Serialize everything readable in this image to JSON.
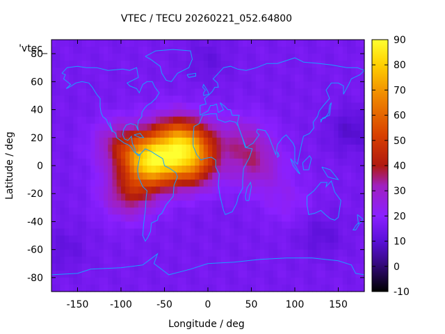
{
  "chart_data": {
    "type": "heatmap",
    "title": "VTEC / TECU 20260221_052.64800",
    "xlabel": "Longitude / deg",
    "ylabel": "Latitude / deg",
    "series_key_label": "'vtec_",
    "xlim": [
      -180,
      180
    ],
    "ylim": [
      -90,
      90
    ],
    "xticks": [
      -150,
      -100,
      -50,
      0,
      50,
      100,
      150
    ],
    "yticks": [
      -80,
      -60,
      -40,
      -20,
      0,
      20,
      40,
      60,
      80
    ],
    "xtick_labels": [
      "-150",
      "-100",
      "-50",
      "0",
      "50",
      "100",
      "150"
    ],
    "ytick_labels": [
      "-80",
      "-60",
      "-40",
      "-20",
      "0",
      "20",
      "40",
      "60",
      "80"
    ],
    "colorbar": {
      "range": [
        -10,
        90
      ],
      "ticks": [
        -10,
        0,
        10,
        20,
        30,
        40,
        50,
        60,
        70,
        80,
        90
      ],
      "tick_labels": [
        "-10",
        "0",
        "10",
        "20",
        "30",
        "40",
        "50",
        "60",
        "70",
        "80",
        "90"
      ],
      "palette": "black-purple-red-orange-yellow"
    },
    "field": {
      "background_tecu": 16,
      "peaks": [
        {
          "lon": -60,
          "lat": 0,
          "peak_tecu": 66
        },
        {
          "lon": -20,
          "lat": 15,
          "peak_tecu": 72
        },
        {
          "lon": -20,
          "lat": 0,
          "peak_tecu": 75
        },
        {
          "lon": -70,
          "lat": 5,
          "peak_tecu": 80
        },
        {
          "lon": -40,
          "lat": 20,
          "peak_tecu": 62
        },
        {
          "lon": -90,
          "lat": -20,
          "peak_tecu": 55
        },
        {
          "lon": -100,
          "lat": 15,
          "peak_tecu": 48
        },
        {
          "lon": 55,
          "lat": 0,
          "peak_tecu": 42
        },
        {
          "lon": 40,
          "lat": 18,
          "peak_tecu": 40
        },
        {
          "lon": 90,
          "lat": -25,
          "peak_tecu": 26
        }
      ],
      "lows": [
        {
          "lon": 165,
          "lat": 25,
          "min_tecu": 9
        },
        {
          "lon": 130,
          "lat": -50,
          "min_tecu": 11
        },
        {
          "lon": -165,
          "lat": -60,
          "min_tecu": 12
        },
        {
          "lon": 0,
          "lat": 75,
          "min_tecu": 12
        }
      ]
    },
    "overlay": "coastlines"
  },
  "colors": {
    "coastline": "#1aa0ff",
    "frame": "#000000"
  }
}
